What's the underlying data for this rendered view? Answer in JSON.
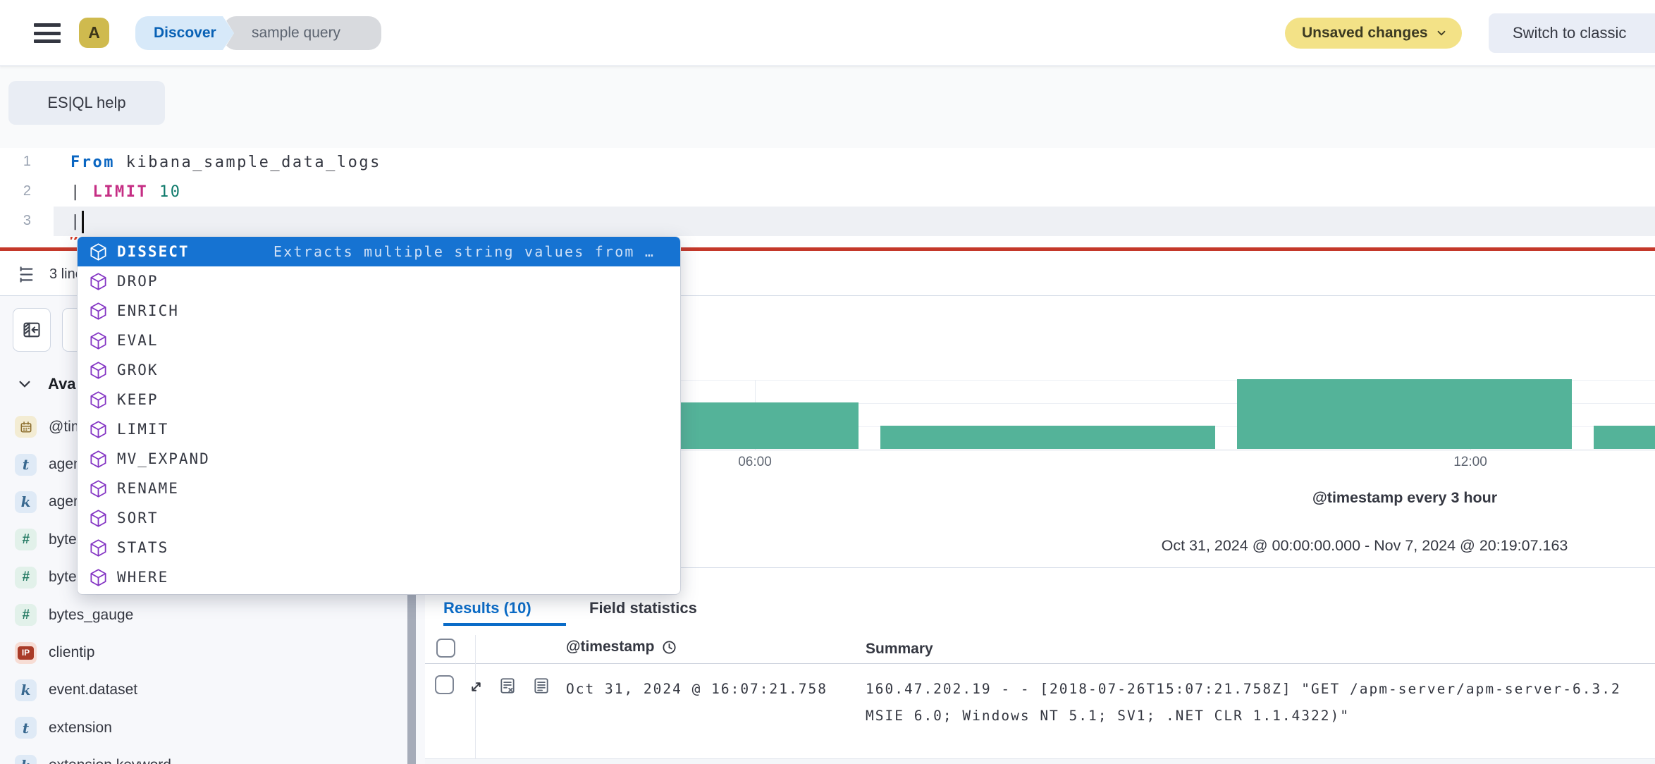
{
  "colors": {
    "primary_blue": "#0a6cc8",
    "selection_blue": "#1673d2",
    "histogram_green": "#54b399",
    "error_red": "#c4382a",
    "unsaved_yellow": "#f3e287",
    "command_purple": "#8435c4"
  },
  "topbar": {
    "avatar_initial": "A",
    "breadcrumbs": [
      {
        "label": "Discover"
      },
      {
        "label": "sample query"
      }
    ],
    "unsaved_badge": "Unsaved changes",
    "switch_classic": "Switch to classic"
  },
  "querybar": {
    "esql_help": "ES|QL help"
  },
  "editor": {
    "line1": {
      "num": "1",
      "keyword": "From",
      "rest": " kibana_sample_data_logs"
    },
    "line2": {
      "num": "2",
      "pipe": "| ",
      "keyword": "LIMIT",
      "value": " 10"
    },
    "line3": {
      "num": "3",
      "pipe": "|"
    },
    "footer": {
      "lines": "3 lines"
    }
  },
  "autocomplete": {
    "items": [
      {
        "label": "DISSECT",
        "description": "Extracts multiple string values from …",
        "selected": true
      },
      {
        "label": "DROP"
      },
      {
        "label": "ENRICH"
      },
      {
        "label": "EVAL"
      },
      {
        "label": "GROK"
      },
      {
        "label": "KEEP"
      },
      {
        "label": "LIMIT"
      },
      {
        "label": "MV_EXPAND"
      },
      {
        "label": "RENAME"
      },
      {
        "label": "SORT"
      },
      {
        "label": "STATS"
      },
      {
        "label": "WHERE"
      }
    ]
  },
  "sidebar": {
    "available_fields": "Available fields",
    "fields": [
      {
        "name": "@timestamp",
        "type": "date",
        "token": ""
      },
      {
        "name": "agent",
        "type": "text",
        "token": "t"
      },
      {
        "name": "agent.keyword",
        "type": "keyword",
        "token": "k"
      },
      {
        "name": "bytes",
        "type": "number",
        "token": "#"
      },
      {
        "name": "bytes_counter",
        "type": "number",
        "token": "#"
      },
      {
        "name": "bytes_gauge",
        "type": "number",
        "token": "#"
      },
      {
        "name": "clientip",
        "type": "ip",
        "token": "IP"
      },
      {
        "name": "event.dataset",
        "type": "keyword",
        "token": "k"
      },
      {
        "name": "extension",
        "type": "text",
        "token": "t"
      },
      {
        "name": "extension.keyword",
        "type": "keyword",
        "token": "k"
      }
    ]
  },
  "chart": {
    "title": "@timestamp every 3 hour",
    "range": "Oct 31, 2024 @ 00:00:00.000 - Nov 7, 2024 @ 20:19:07.163",
    "xtick1": "06:00",
    "xtick2": "12:00"
  },
  "chart_data": {
    "type": "bar",
    "title": "@timestamp every 3 hour",
    "x_field": "@timestamp",
    "interval": "3 hour",
    "x_tick_labels": [
      "06:00",
      "12:00"
    ],
    "date_range_label": "Oct 31, 2024 @ 00:00:00.000 - Nov 7, 2024 @ 20:19:07.163",
    "buckets": [
      {
        "x": "Oct 31 03:00",
        "count": 2
      },
      {
        "x": "Oct 31 06:00",
        "count": 1
      },
      {
        "x": "Oct 31 09:00",
        "count": 3
      },
      {
        "x": "Oct 31 12:00",
        "count": 1
      }
    ],
    "ylim": [
      0,
      3
    ],
    "grid": true,
    "bar_color": "#54b399"
  },
  "results": {
    "tab_results": "Results (10)",
    "tab_fieldstats": "Field statistics",
    "col_timestamp": "@timestamp",
    "col_summary": "Summary",
    "row": {
      "timestamp": "Oct 31, 2024 @ 16:07:21.758",
      "summary1": "160.47.202.19 - - [2018-07-26T15:07:21.758Z] \"GET /apm-server/apm-server-6.3.2",
      "summary2": "MSIE 6.0; Windows NT 5.1; SV1; .NET CLR 1.1.4322)\""
    }
  }
}
